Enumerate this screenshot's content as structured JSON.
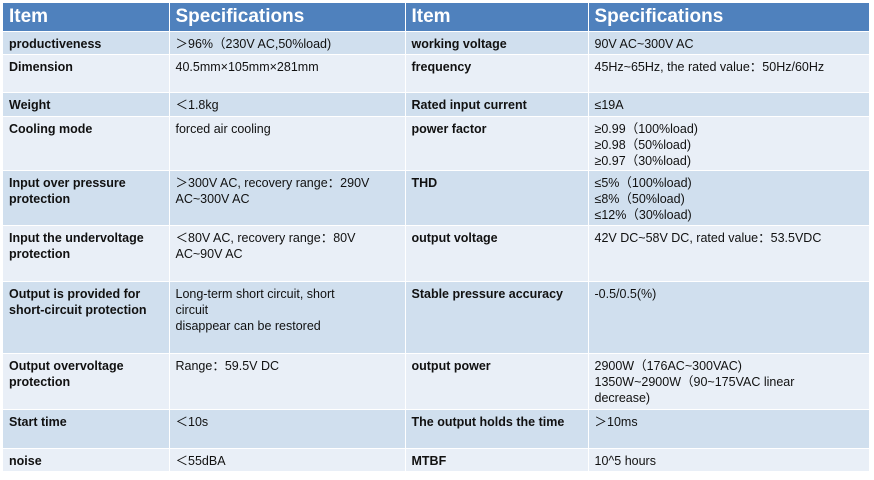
{
  "table": {
    "headers": [
      "Item",
      "Specifications",
      "Item",
      "Specifications"
    ],
    "rows": [
      {
        "left_item": "productiveness",
        "left_spec": [
          "＞96%（230V AC,50%load)"
        ],
        "right_item": "working voltage",
        "right_spec": [
          "90V AC~300V AC"
        ]
      },
      {
        "left_item": "Dimension",
        "left_spec": [
          "40.5mm×105mm×281mm"
        ],
        "right_item": "frequency",
        "right_spec": [
          "45Hz~65Hz, the rated value：50Hz/60Hz"
        ]
      },
      {
        "left_item": "Weight",
        "left_spec": [
          "＜1.8kg"
        ],
        "right_item": "Rated input current",
        "right_spec": [
          "≤19A"
        ]
      },
      {
        "left_item": "Cooling mode",
        "left_spec": [
          "forced air cooling"
        ],
        "right_item": "power factor",
        "right_spec": [
          "≥0.99（100%load)",
          "≥0.98（50%load)",
          "≥0.97（30%load)"
        ]
      },
      {
        "left_item": "Input over pressure protection",
        "left_spec": [
          "＞300V AC, recovery range：290V",
          "AC~300V AC"
        ],
        "right_item": "THD",
        "right_spec": [
          "≤5%（100%load)",
          "≤8%（50%load)",
          "≤12%（30%load)"
        ]
      },
      {
        "left_item": "Input the undervoltage protection",
        "left_spec": [
          "＜80V AC, recovery range：80V",
          "AC~90V AC"
        ],
        "right_item": "output voltage",
        "right_spec": [
          "42V DC~58V DC, rated value：53.5VDC"
        ]
      },
      {
        "left_item": "Output is provided for short-circuit protection",
        "left_spec": [
          "Long-term short circuit, short",
          "circuit",
          "disappear  can be restored"
        ],
        "right_item": "Stable pressure accuracy",
        "right_spec": [
          "-0.5/0.5(%)"
        ]
      },
      {
        "left_item": "Output overvoltage protection",
        "left_spec": [
          "Range：59.5V DC"
        ],
        "right_item": "output power",
        "right_spec": [
          "2900W（176AC~300VAC)",
          "1350W~2900W（90~175VAC linear",
          "decrease)"
        ]
      },
      {
        "left_item": "Start time",
        "left_spec": [
          "＜10s"
        ],
        "right_item": "The output holds the time",
        "right_spec": [
          "＞10ms"
        ]
      },
      {
        "left_item": "noise",
        "left_spec": [
          "＜55dBA"
        ],
        "right_item": "MTBF",
        "right_spec": [
          "10^5 hours"
        ]
      }
    ]
  }
}
